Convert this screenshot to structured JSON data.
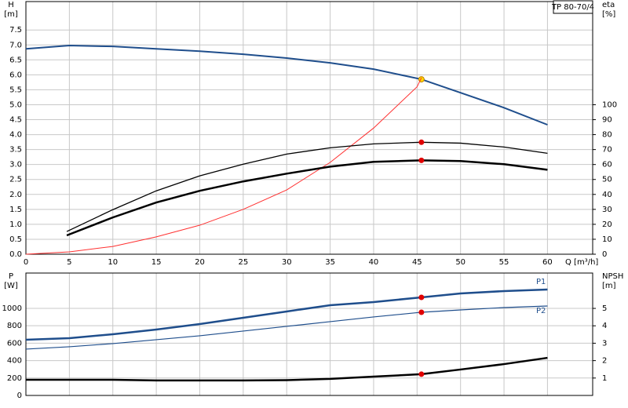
{
  "header": {
    "model": "TP 80-70/4"
  },
  "chart_data": [
    {
      "type": "line",
      "y_label": "H",
      "y_unit": "[m]",
      "y2_label": "eta",
      "y2_unit": "[%]",
      "x_label": "Q [m³/h]",
      "xlim": [
        0,
        65.2
      ],
      "xticks": [
        0,
        5,
        10,
        15,
        20,
        25,
        30,
        35,
        40,
        45,
        50,
        55,
        60
      ],
      "ylim": [
        0,
        8.45
      ],
      "yticks": [
        {
          "value": 0,
          "label": "0.0"
        },
        0.5,
        {
          "value": 1,
          "label": "1.0"
        },
        1.5,
        {
          "value": 2,
          "label": "2.0"
        },
        2.5,
        {
          "value": 3,
          "label": "3.0"
        },
        3.5,
        {
          "value": 4,
          "label": "4.0"
        },
        4.5,
        {
          "value": 5,
          "label": "5.0"
        },
        5.5,
        {
          "value": 6,
          "label": "6.0"
        },
        6.5,
        {
          "value": 7,
          "label": "7.0"
        },
        7.5
      ],
      "y2lim": [
        0,
        169
      ],
      "y2ticks": [
        0,
        10,
        20,
        30,
        40,
        50,
        60,
        70,
        80,
        90,
        100
      ],
      "grid": true,
      "duty_x": 45.5,
      "series": [
        {
          "color": "#1f4e8c",
          "line_width": 2,
          "marker_color": "#ffd700",
          "x": [
            0,
            5,
            10,
            15,
            20,
            25,
            30,
            35,
            40,
            45.5,
            50,
            55,
            60
          ],
          "values": [
            6.87,
            6.98,
            6.95,
            6.87,
            6.79,
            6.69,
            6.56,
            6.4,
            6.19,
            5.85,
            5.4,
            4.9,
            4.33
          ]
        },
        {
          "color": "#ff3030",
          "line_width": 1,
          "x": [
            0,
            5,
            10,
            15,
            20,
            25,
            30,
            35,
            40,
            45,
            45.5
          ],
          "values": [
            0,
            0.08,
            0.26,
            0.58,
            0.97,
            1.5,
            2.15,
            3.07,
            4.22,
            5.6,
            5.9
          ]
        },
        {
          "color": "#000000",
          "line_width": 1.3,
          "axis": "y2",
          "marker_color": "#e00000",
          "x": [
            4.7,
            10,
            15,
            20,
            25,
            30,
            35,
            40,
            45.5,
            50,
            55,
            60
          ],
          "values": [
            15.2,
            29.8,
            42.4,
            52.4,
            60.2,
            67,
            71.2,
            73.8,
            74.9,
            74.3,
            71.7,
            67.5
          ]
        },
        {
          "color": "#000000",
          "line_width": 2.5,
          "axis": "y2",
          "marker_color": "#e00000",
          "x": [
            4.7,
            10,
            15,
            20,
            25,
            30,
            35,
            40,
            45.5,
            50,
            55,
            60
          ],
          "values": [
            12.6,
            24.6,
            34.6,
            42.4,
            48.7,
            53.9,
            58.6,
            61.8,
            62.8,
            62.3,
            60.2,
            56.5
          ]
        }
      ]
    },
    {
      "type": "line",
      "y_label": "P",
      "y_unit": "[W]",
      "y2_label": "NPSH",
      "y2_unit": "[m]",
      "xlim": [
        0,
        65.2
      ],
      "xticks": [
        0,
        5,
        10,
        15,
        20,
        25,
        30,
        35,
        40,
        45,
        50,
        55,
        60
      ],
      "ylim": [
        0,
        1405
      ],
      "yticks": [
        0,
        200,
        400,
        600,
        800,
        1000
      ],
      "y2lim": [
        0,
        7.03
      ],
      "y2ticks": [
        1,
        2,
        3,
        4,
        5
      ],
      "grid": true,
      "duty_x": 45.5,
      "series": [
        {
          "name": "P1",
          "color": "#1f4e8c",
          "line_width": 2.5,
          "marker_color": "#e00000",
          "x": [
            0,
            5,
            10,
            15,
            20,
            25,
            30,
            35,
            40,
            45.5,
            50,
            55,
            60
          ],
          "values": [
            640,
            658,
            703,
            757,
            820,
            892,
            964,
            1036,
            1072,
            1126,
            1171,
            1198,
            1216
          ]
        },
        {
          "name": "P2",
          "color": "#1f4e8c",
          "line_width": 1.2,
          "marker_color": "#e00000",
          "x": [
            0,
            5,
            10,
            15,
            20,
            25,
            30,
            35,
            40,
            45.5,
            50,
            55,
            60
          ],
          "values": [
            532,
            559,
            595,
            640,
            685,
            739,
            793,
            847,
            901,
            955,
            982,
            1009,
            1027
          ]
        },
        {
          "color": "#000000",
          "line_width": 2.5,
          "axis": "y2",
          "marker_color": "#e00000",
          "x": [
            0,
            5,
            10,
            15,
            20,
            25,
            30,
            35,
            40,
            45.5,
            50,
            55,
            60
          ],
          "values": [
            0.9,
            0.9,
            0.9,
            0.86,
            0.86,
            0.86,
            0.88,
            0.95,
            1.08,
            1.22,
            1.49,
            1.8,
            2.16
          ]
        }
      ]
    }
  ]
}
